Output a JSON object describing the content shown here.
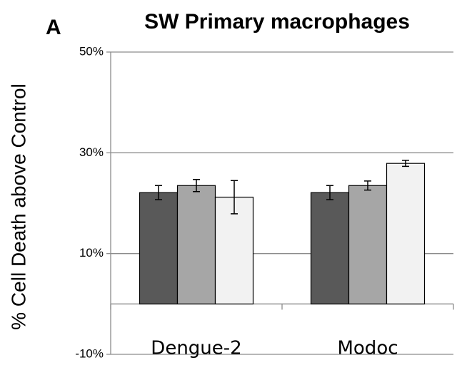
{
  "chart_data": {
    "type": "bar",
    "title": "SW Primary macrophages",
    "panel_label": "A",
    "y_label": "% Cell Death above Control",
    "categories": [
      "Dengue-2",
      "Modoc"
    ],
    "series": [
      {
        "color": "#595959",
        "values": [
          22.1,
          22.1
        ],
        "errors": [
          1.4,
          1.4
        ]
      },
      {
        "color": "#a6a6a6",
        "values": [
          23.5,
          23.5
        ],
        "errors": [
          1.2,
          0.9
        ]
      },
      {
        "color": "#f2f2f2",
        "values": [
          21.2,
          27.9
        ],
        "errors": [
          3.3,
          0.6
        ]
      }
    ],
    "ylim": [
      -10,
      50
    ],
    "yticks": [
      {
        "value": -10,
        "label": "-10%"
      },
      {
        "value": 10,
        "label": "10%"
      },
      {
        "value": 30,
        "label": "30%"
      },
      {
        "value": 50,
        "label": "50%"
      }
    ],
    "grid": true
  }
}
